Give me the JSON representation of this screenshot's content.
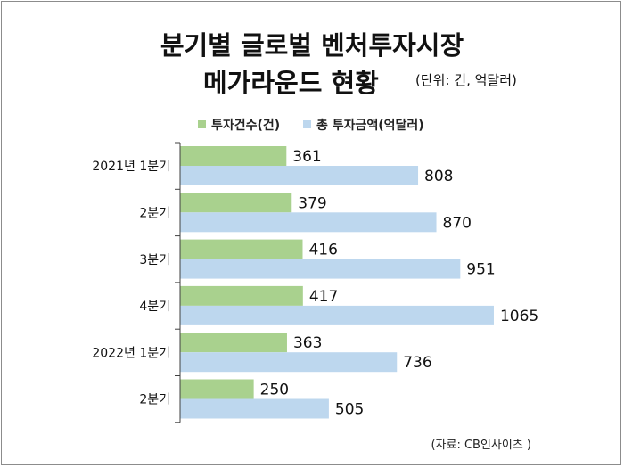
{
  "title": {
    "line1": "분기별 글로벌 벤처투자시장",
    "line2": "메가라운드 현황",
    "unit": "(단위: 건, 억달러)"
  },
  "source": "(자료: CB인사이츠 )",
  "colors": {
    "series_count": "#a9d18e",
    "series_amount": "#bdd7ee"
  },
  "chart_data": {
    "type": "bar",
    "orientation": "horizontal",
    "categories": [
      "2021년 1분기",
      "2분기",
      "3분기",
      "4분기",
      "2022년 1분기",
      "2분기"
    ],
    "series": [
      {
        "name": "투자건수(건)",
        "values": [
          361,
          379,
          416,
          417,
          363,
          250
        ]
      },
      {
        "name": "총 투자금액(억달러)",
        "values": [
          808,
          870,
          951,
          1065,
          736,
          505
        ]
      }
    ],
    "legend_position": "top",
    "grid": false
  }
}
